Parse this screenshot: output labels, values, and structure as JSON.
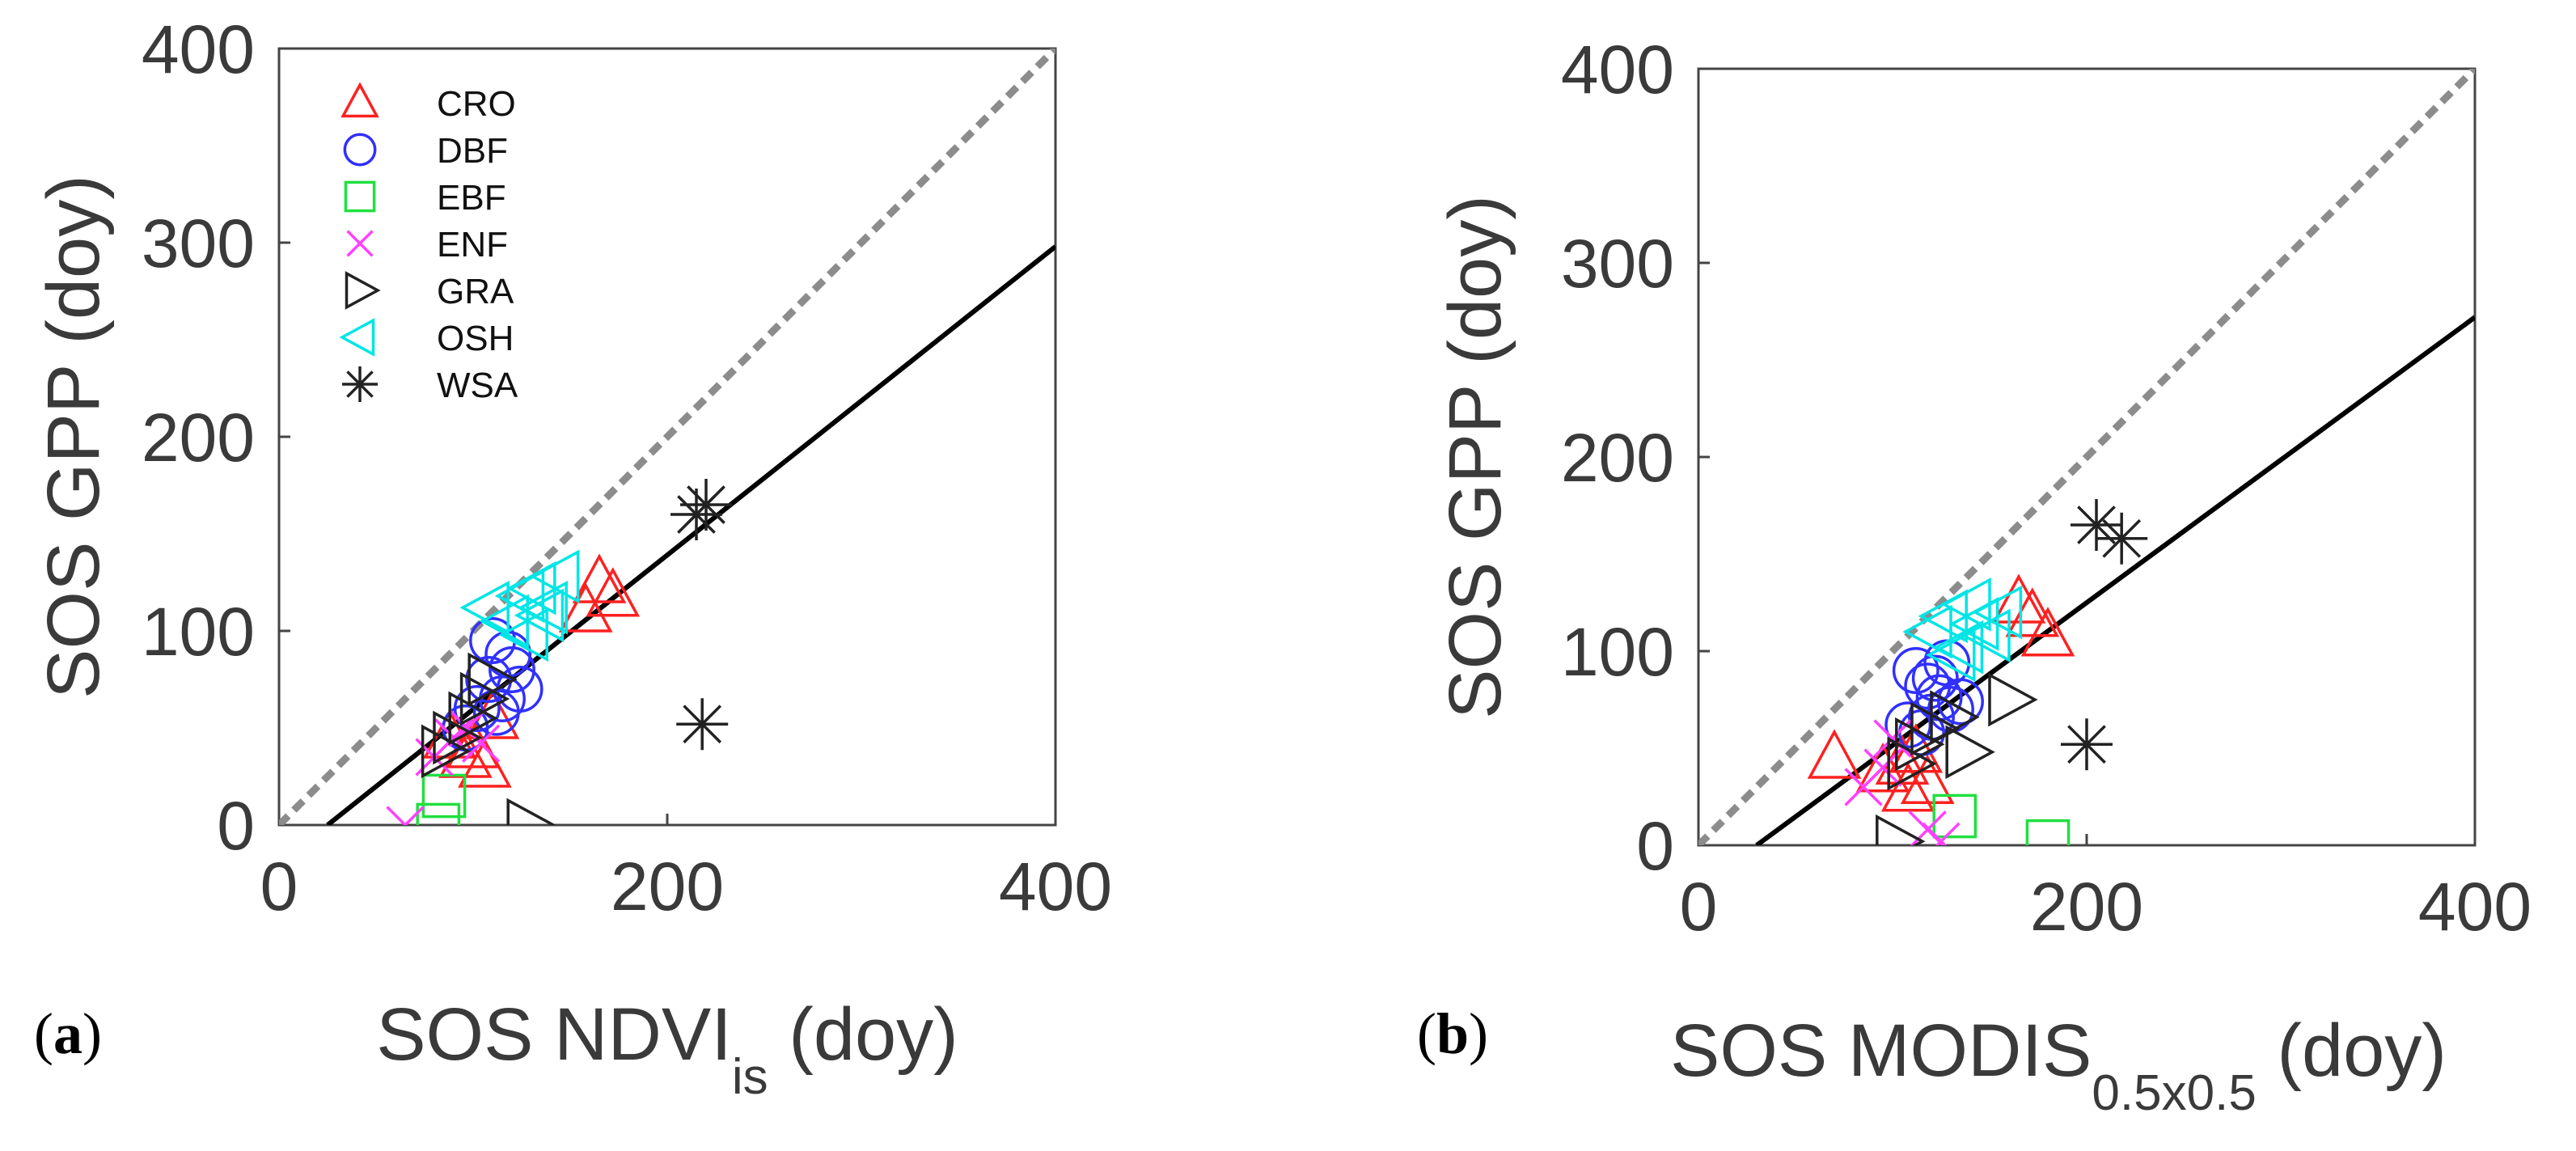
{
  "panel_labels": [
    {
      "open": "(",
      "letter": "a",
      "close": ")"
    },
    {
      "open": "(",
      "letter": "b",
      "close": ")"
    }
  ],
  "colors": {
    "CRO": "#ff2020",
    "DBF": "#3030ff",
    "EBF": "#20e040",
    "ENF": "#ff40ff",
    "GRA": "#222222",
    "OSH": "#00e5e5",
    "WSA": "#222222",
    "fit": "#000000",
    "one_to_one": "#8c8c8c",
    "tick_text": "#3a3a3a"
  },
  "chart_data": [
    {
      "type": "scatter",
      "xlabel_main": "SOS NDVI",
      "xlabel_sub": "is",
      "xlabel_tail": "(doy)",
      "ylabel": "SOS GPP (doy)",
      "xlim": [
        0,
        400
      ],
      "ylim": [
        0,
        400
      ],
      "xticks": [
        0,
        200,
        400
      ],
      "yticks": [
        0,
        100,
        200,
        300,
        400
      ],
      "legend_position": "top-left",
      "legend": [
        {
          "label": "CRO",
          "marker": "triangle-up"
        },
        {
          "label": "DBF",
          "marker": "circle"
        },
        {
          "label": "EBF",
          "marker": "square"
        },
        {
          "label": "ENF",
          "marker": "x"
        },
        {
          "label": "GRA",
          "marker": "triangle-right"
        },
        {
          "label": "OSH",
          "marker": "triangle-left"
        },
        {
          "label": "WSA",
          "marker": "asterisk"
        }
      ],
      "one_to_one": [
        [
          0,
          0
        ],
        [
          400,
          400
        ]
      ],
      "fit_line": [
        [
          25,
          0
        ],
        [
          400,
          298
        ]
      ],
      "series": [
        {
          "name": "CRO",
          "x": [
            165,
            172,
            158,
            100,
            106,
            88,
            96,
            110
          ],
          "y": [
            125,
            118,
            110,
            40,
            30,
            45,
            35,
            55
          ]
        },
        {
          "name": "DBF",
          "x": [
            110,
            118,
            124,
            102,
            108,
            115,
            120,
            96,
            112
          ],
          "y": [
            95,
            88,
            70,
            60,
            75,
            65,
            80,
            50,
            58
          ]
        },
        {
          "name": "EBF",
          "x": [
            82,
            85
          ],
          "y": [
            0,
            15
          ]
        },
        {
          "name": "ENF",
          "x": [
            65,
            80,
            90,
            97,
            104
          ],
          "y": [
            0,
            35,
            45,
            50,
            42
          ]
        },
        {
          "name": "GRA",
          "x": [
            128,
            84,
            90,
            98,
            104,
            108
          ],
          "y": [
            0,
            38,
            45,
            55,
            65,
            75
          ]
        },
        {
          "name": "OSH",
          "x": [
            108,
            118,
            126,
            132,
            138,
            144,
            128,
            136
          ],
          "y": [
            112,
            105,
            118,
            122,
            112,
            128,
            98,
            108
          ]
        },
        {
          "name": "WSA",
          "x": [
            215,
            220,
            218
          ],
          "y": [
            160,
            165,
            52
          ]
        }
      ]
    },
    {
      "type": "scatter",
      "xlabel_main": "SOS MODIS",
      "xlabel_sub": "0.5x0.5",
      "xlabel_tail": "(doy)",
      "ylabel": "SOS GPP (doy)",
      "xlim": [
        0,
        400
      ],
      "ylim": [
        0,
        400
      ],
      "xticks": [
        0,
        200,
        400
      ],
      "yticks": [
        0,
        100,
        200,
        300,
        400
      ],
      "legend_position": "none",
      "legend": [],
      "one_to_one": [
        [
          0,
          0
        ],
        [
          400,
          400
        ]
      ],
      "fit_line": [
        [
          30,
          0
        ],
        [
          400,
          272
        ]
      ],
      "series": [
        {
          "name": "CRO",
          "x": [
            70,
            95,
            105,
            112,
            165,
            172,
            180,
            118,
            108
          ],
          "y": [
            45,
            38,
            42,
            48,
            125,
            118,
            108,
            32,
            28
          ]
        },
        {
          "name": "DBF",
          "x": [
            112,
            118,
            124,
            130,
            108,
            115,
            122,
            128,
            135,
            120
          ],
          "y": [
            90,
            82,
            76,
            70,
            62,
            58,
            86,
            94,
            74,
            66
          ]
        },
        {
          "name": "EBF",
          "x": [
            132,
            180
          ],
          "y": [
            15,
            2
          ]
        },
        {
          "name": "ENF",
          "x": [
            85,
            95,
            118,
            125,
            100
          ],
          "y": [
            30,
            40,
            8,
            2,
            55
          ]
        },
        {
          "name": "GRA",
          "x": [
            102,
            160,
            108,
            112,
            120,
            130,
            138
          ],
          "y": [
            2,
            75,
            42,
            52,
            60,
            66,
            48
          ]
        },
        {
          "name": "OSH",
          "x": [
            120,
            128,
            136,
            144,
            150,
            156,
            132,
            140
          ],
          "y": [
            110,
            118,
            102,
            114,
            108,
            120,
            98,
            124
          ]
        },
        {
          "name": "WSA",
          "x": [
            205,
            218,
            200
          ],
          "y": [
            165,
            158,
            52
          ]
        }
      ]
    }
  ]
}
